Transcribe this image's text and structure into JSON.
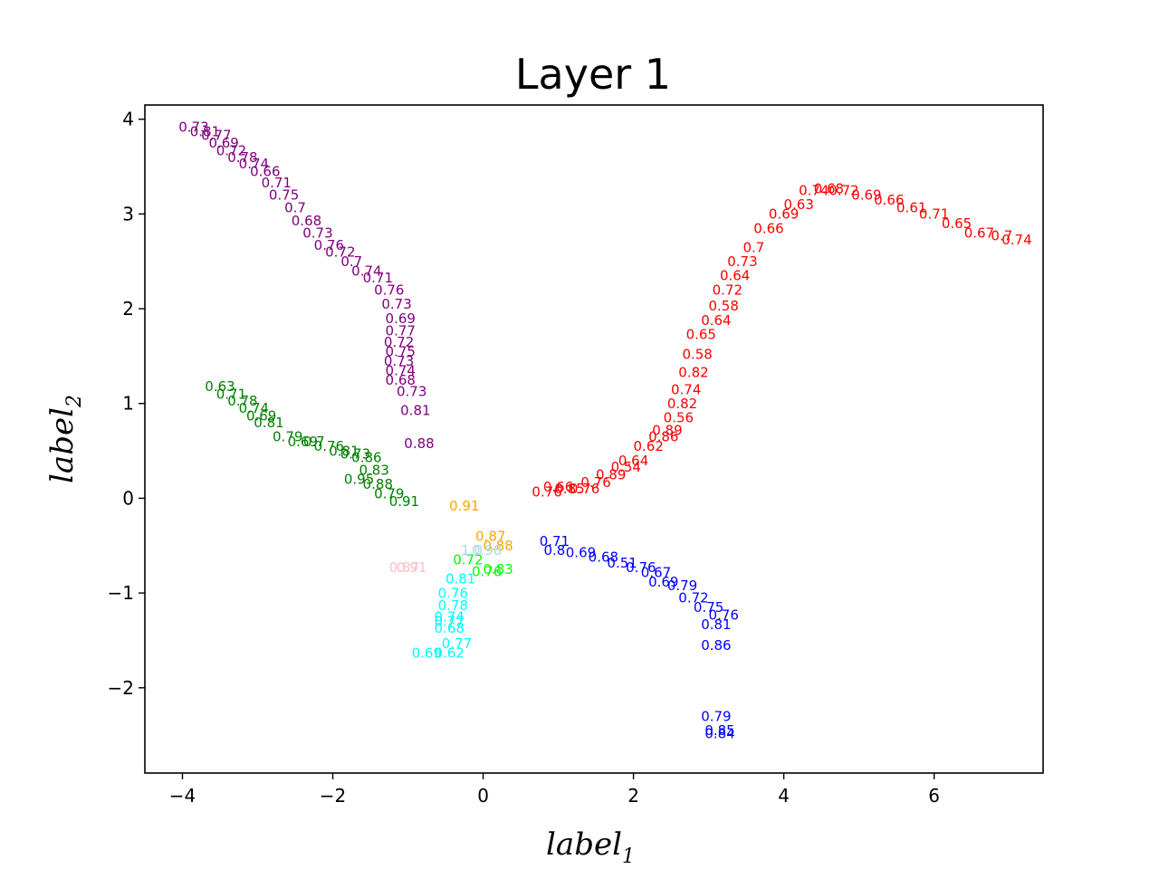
{
  "chart_data": {
    "type": "scatter",
    "title": "Layer 1",
    "xlabel": "label",
    "xlabel_sub": "1",
    "ylabel": "label",
    "ylabel_sub": "2",
    "xlim": [
      -4.5,
      7.45
    ],
    "ylim": [
      -2.9,
      4.15
    ],
    "xticks": [
      -4,
      -2,
      0,
      2,
      4,
      6
    ],
    "yticks": [
      -2,
      -1,
      0,
      1,
      2,
      3,
      4
    ],
    "xtick_labels": [
      "−4",
      "−2",
      "0",
      "2",
      "4",
      "6"
    ],
    "ytick_labels": [
      "−2",
      "−1",
      "0",
      "1",
      "2",
      "3",
      "4"
    ],
    "grid": false,
    "marker": "text",
    "series": [
      {
        "color": "#800080",
        "points": [
          [
            -3.85,
            3.87,
            "0.73"
          ],
          [
            -3.7,
            3.82,
            "0.81"
          ],
          [
            -3.55,
            3.78,
            "0.77"
          ],
          [
            -3.45,
            3.7,
            "0.69"
          ],
          [
            -3.35,
            3.62,
            "0.72"
          ],
          [
            -3.2,
            3.55,
            "0.78"
          ],
          [
            -3.05,
            3.48,
            "0.74"
          ],
          [
            -2.9,
            3.4,
            "0.66"
          ],
          [
            -2.75,
            3.28,
            "0.71"
          ],
          [
            -2.65,
            3.15,
            "0.75"
          ],
          [
            -2.5,
            3.02,
            "0.7"
          ],
          [
            -2.35,
            2.88,
            "0.68"
          ],
          [
            -2.2,
            2.75,
            "0.73"
          ],
          [
            -2.05,
            2.62,
            "0.76"
          ],
          [
            -1.9,
            2.55,
            "0.72"
          ],
          [
            -1.75,
            2.45,
            "0.7"
          ],
          [
            -1.55,
            2.35,
            "0.74"
          ],
          [
            -1.4,
            2.28,
            "0.71"
          ],
          [
            -1.25,
            2.15,
            "0.76"
          ],
          [
            -1.15,
            2.0,
            "0.73"
          ],
          [
            -1.1,
            1.85,
            "0.69"
          ],
          [
            -1.1,
            1.72,
            "0.77"
          ],
          [
            -1.12,
            1.6,
            "0.72"
          ],
          [
            -1.1,
            1.5,
            "0.75"
          ],
          [
            -1.12,
            1.4,
            "0.73"
          ],
          [
            -1.1,
            1.3,
            "0.74"
          ],
          [
            -1.1,
            1.2,
            "0.68"
          ],
          [
            -0.95,
            1.08,
            "0.73"
          ],
          [
            -0.9,
            0.88,
            "0.81"
          ],
          [
            -0.85,
            0.53,
            "0.88"
          ]
        ]
      },
      {
        "color": "#ff0000",
        "points": [
          [
            7.1,
            2.68,
            "0.74"
          ],
          [
            6.9,
            2.72,
            "0.7"
          ],
          [
            6.6,
            2.75,
            "0.67"
          ],
          [
            6.3,
            2.85,
            "0.65"
          ],
          [
            6.0,
            2.95,
            "0.71"
          ],
          [
            5.7,
            3.02,
            "0.61"
          ],
          [
            5.4,
            3.1,
            "0.66"
          ],
          [
            5.1,
            3.15,
            "0.69"
          ],
          [
            4.8,
            3.2,
            "0.72"
          ],
          [
            4.6,
            3.22,
            "0.68"
          ],
          [
            4.4,
            3.2,
            "0.74"
          ],
          [
            4.2,
            3.05,
            "0.63"
          ],
          [
            4.0,
            2.95,
            "0.69"
          ],
          [
            3.8,
            2.8,
            "0.66"
          ],
          [
            3.6,
            2.6,
            "0.7"
          ],
          [
            3.45,
            2.45,
            "0.73"
          ],
          [
            3.35,
            2.3,
            "0.64"
          ],
          [
            3.25,
            2.15,
            "0.72"
          ],
          [
            3.2,
            1.98,
            "0.58"
          ],
          [
            3.1,
            1.83,
            "0.64"
          ],
          [
            2.9,
            1.68,
            "0.65"
          ],
          [
            2.85,
            1.47,
            "0.58"
          ],
          [
            2.8,
            1.28,
            "0.82"
          ],
          [
            2.7,
            1.1,
            "0.74"
          ],
          [
            2.65,
            0.95,
            "0.82"
          ],
          [
            2.6,
            0.8,
            "0.56"
          ],
          [
            2.45,
            0.67,
            "0.89"
          ],
          [
            2.4,
            0.6,
            "0.86"
          ],
          [
            2.2,
            0.5,
            "0.62"
          ],
          [
            2.0,
            0.35,
            "0.64"
          ],
          [
            1.9,
            0.28,
            "0.54"
          ],
          [
            1.7,
            0.2,
            "0.89"
          ],
          [
            1.5,
            0.12,
            "0.76"
          ],
          [
            1.35,
            0.05,
            "0.76"
          ],
          [
            1.15,
            0.05,
            "0.85"
          ],
          [
            1.0,
            0.07,
            "0.66"
          ],
          [
            0.85,
            0.02,
            "0.76"
          ]
        ]
      },
      {
        "color": "#008000",
        "points": [
          [
            -3.5,
            1.13,
            "0.63"
          ],
          [
            -3.35,
            1.05,
            "0.71"
          ],
          [
            -3.2,
            0.98,
            "0.78"
          ],
          [
            -3.05,
            0.9,
            "0.74"
          ],
          [
            -2.95,
            0.82,
            "0.69"
          ],
          [
            -2.85,
            0.75,
            "0.81"
          ],
          [
            -2.6,
            0.6,
            "0.79"
          ],
          [
            -2.4,
            0.55,
            "0.69"
          ],
          [
            -2.25,
            0.55,
            "0.7"
          ],
          [
            -2.05,
            0.5,
            "0.76"
          ],
          [
            -1.85,
            0.45,
            "0.81"
          ],
          [
            -1.7,
            0.42,
            "0.73"
          ],
          [
            -1.55,
            0.38,
            "0.86"
          ],
          [
            -1.45,
            0.25,
            "0.83"
          ],
          [
            -1.65,
            0.15,
            "0.95"
          ],
          [
            -1.4,
            0.1,
            "0.88"
          ],
          [
            -1.25,
            0.0,
            "0.79"
          ],
          [
            -1.05,
            -0.08,
            "0.91"
          ]
        ]
      },
      {
        "color": "#0000ff",
        "points": [
          [
            0.95,
            -0.5,
            "0.71"
          ],
          [
            0.95,
            -0.6,
            "0.8"
          ],
          [
            1.3,
            -0.62,
            "0.69"
          ],
          [
            1.6,
            -0.67,
            "0.68"
          ],
          [
            1.85,
            -0.73,
            "0.51"
          ],
          [
            2.1,
            -0.78,
            "0.76"
          ],
          [
            2.3,
            -0.83,
            "0.67"
          ],
          [
            2.4,
            -0.93,
            "0.69"
          ],
          [
            2.65,
            -0.97,
            "0.79"
          ],
          [
            2.8,
            -1.1,
            "0.72"
          ],
          [
            3.0,
            -1.2,
            "0.75"
          ],
          [
            3.2,
            -1.28,
            "0.76"
          ],
          [
            3.1,
            -1.38,
            "0.81"
          ],
          [
            3.1,
            -1.6,
            "0.86"
          ],
          [
            3.1,
            -2.35,
            "0.79"
          ],
          [
            3.15,
            -2.5,
            "0.85"
          ],
          [
            3.15,
            -2.53,
            "0.84"
          ]
        ]
      },
      {
        "color": "#ffa500",
        "points": [
          [
            -0.25,
            -0.13,
            "0.91"
          ],
          [
            0.1,
            -0.45,
            "0.87"
          ],
          [
            0.2,
            -0.55,
            "0.88"
          ]
        ]
      },
      {
        "color": "#00ffff",
        "points": [
          [
            -0.3,
            -0.9,
            "0.81"
          ],
          [
            -0.4,
            -1.05,
            "0.76"
          ],
          [
            -0.4,
            -1.18,
            "0.78"
          ],
          [
            -0.45,
            -1.3,
            "0.74"
          ],
          [
            -0.45,
            -1.35,
            "0.77"
          ],
          [
            -0.45,
            -1.42,
            "0.68"
          ],
          [
            -0.35,
            -1.58,
            "0.77"
          ],
          [
            -0.45,
            -1.68,
            "0.62"
          ],
          [
            -0.75,
            -1.68,
            "0.69"
          ]
        ]
      },
      {
        "color": "#00ff00",
        "points": [
          [
            -0.2,
            -0.7,
            "0.72"
          ],
          [
            0.05,
            -0.82,
            "0.76"
          ],
          [
            0.2,
            -0.8,
            "0.83"
          ]
        ]
      },
      {
        "color": "#ffc0cb",
        "points": [
          [
            -1.05,
            -0.78,
            "0.87"
          ],
          [
            -0.95,
            -0.78,
            "0.91"
          ]
        ]
      },
      {
        "color": "#add8e6",
        "points": [
          [
            -0.15,
            -0.6,
            "1.0"
          ],
          [
            0.05,
            -0.6,
            "0.98"
          ]
        ]
      }
    ]
  }
}
